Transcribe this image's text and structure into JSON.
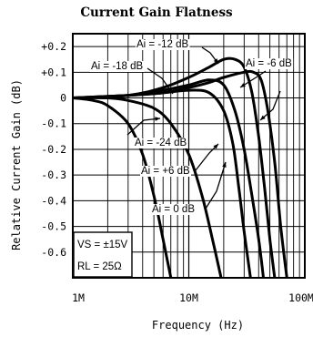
{
  "chart_data": {
    "type": "line",
    "title": "Current Gain Flatness",
    "xlabel": "Frequency (Hz)",
    "ylabel": "Relative Current Gain (dB)",
    "xscale": "log",
    "xlim": [
      1000000,
      100000000
    ],
    "ylim": [
      -0.7,
      0.25
    ],
    "grid": true,
    "x_tick_labels": [
      "1M",
      "10M",
      "100M"
    ],
    "y_ticks": [
      0.2,
      0.1,
      0,
      -0.1,
      -0.2,
      -0.3,
      -0.4,
      -0.5,
      -0.6
    ],
    "y_tick_labels": [
      "+0.2",
      "+0.1",
      "0",
      "-0.1",
      "-0.2",
      "-0.3",
      "-0.4",
      "-0.5",
      "-0.6"
    ],
    "conditions": [
      "VS = ±15V",
      "RL = 25Ω"
    ],
    "series": [
      {
        "name": "Ai = -24 dB",
        "x": [
          1000000,
          1500000,
          2000000,
          3000000,
          4000000,
          5000000,
          6000000,
          7000000
        ],
        "y": [
          0,
          -0.01,
          -0.03,
          -0.1,
          -0.22,
          -0.38,
          -0.55,
          -0.7
        ]
      },
      {
        "name": "Ai = -18 dB",
        "x": [
          1000000,
          2000000,
          3000000,
          5000000,
          7000000,
          10000000,
          13000000,
          16000000,
          19000000
        ],
        "y": [
          0,
          0.0,
          -0.01,
          -0.04,
          -0.1,
          -0.22,
          -0.38,
          -0.55,
          -0.7
        ]
      },
      {
        "name": "Ai = +6 dB",
        "x": [
          1000000,
          3000000,
          6000000,
          10000000,
          15000000,
          20000000,
          24000000,
          27000000,
          30000000,
          34000000
        ],
        "y": [
          0,
          0.01,
          0.02,
          0.03,
          0.02,
          -0.05,
          -0.18,
          -0.35,
          -0.52,
          -0.7
        ]
      },
      {
        "name": "Ai = 0 dB",
        "x": [
          1000000,
          3000000,
          6000000,
          10000000,
          15000000,
          20000000,
          25000000,
          30000000,
          35000000,
          40000000,
          44000000
        ],
        "y": [
          0,
          0.01,
          0.03,
          0.05,
          0.07,
          0.05,
          -0.05,
          -0.2,
          -0.38,
          -0.55,
          -0.7
        ]
      },
      {
        "name": "Ai = -12 dB",
        "x": [
          1000000,
          3000000,
          6000000,
          10000000,
          15000000,
          20000000,
          25000000,
          30000000,
          35000000,
          40000000,
          45000000,
          50000000,
          55000000
        ],
        "y": [
          0,
          0.01,
          0.04,
          0.08,
          0.12,
          0.15,
          0.15,
          0.12,
          0.02,
          -0.15,
          -0.35,
          -0.55,
          -0.7
        ]
      },
      {
        "name": "Ai = -6 dB",
        "x": [
          1000000,
          3000000,
          6000000,
          10000000,
          15000000,
          20000000,
          30000000,
          36000000,
          42000000,
          48000000,
          55000000,
          62000000,
          70000000
        ],
        "y": [
          0,
          0.01,
          0.02,
          0.04,
          0.06,
          0.08,
          0.1,
          0.1,
          0.07,
          -0.05,
          -0.25,
          -0.5,
          -0.7
        ]
      }
    ],
    "labels": {
      "Ai = -12 dB": {
        "text": "Ai = -12 dB",
        "pos": [
          0.03,
          0.19
        ]
      },
      "Ai = -18 dB": {
        "text": "Ai = -18 dB",
        "pos": [
          0.02,
          0.1
        ]
      },
      "Ai = -6 dB": {
        "text": "Ai = -6 dB",
        "pos": [
          0.2,
          0.1
        ]
      },
      "Ai = -24 dB": {
        "text": "Ai = -24 dB",
        "pos": [
          0.01,
          -0.2
        ]
      },
      "Ai = +6 dB": {
        "text": "Ai = +6 dB",
        "pos": [
          0.04,
          -0.32
        ]
      },
      "Ai = 0 dB": {
        "text": "Ai = 0 dB",
        "pos": [
          0.04,
          -0.5
        ]
      }
    }
  }
}
